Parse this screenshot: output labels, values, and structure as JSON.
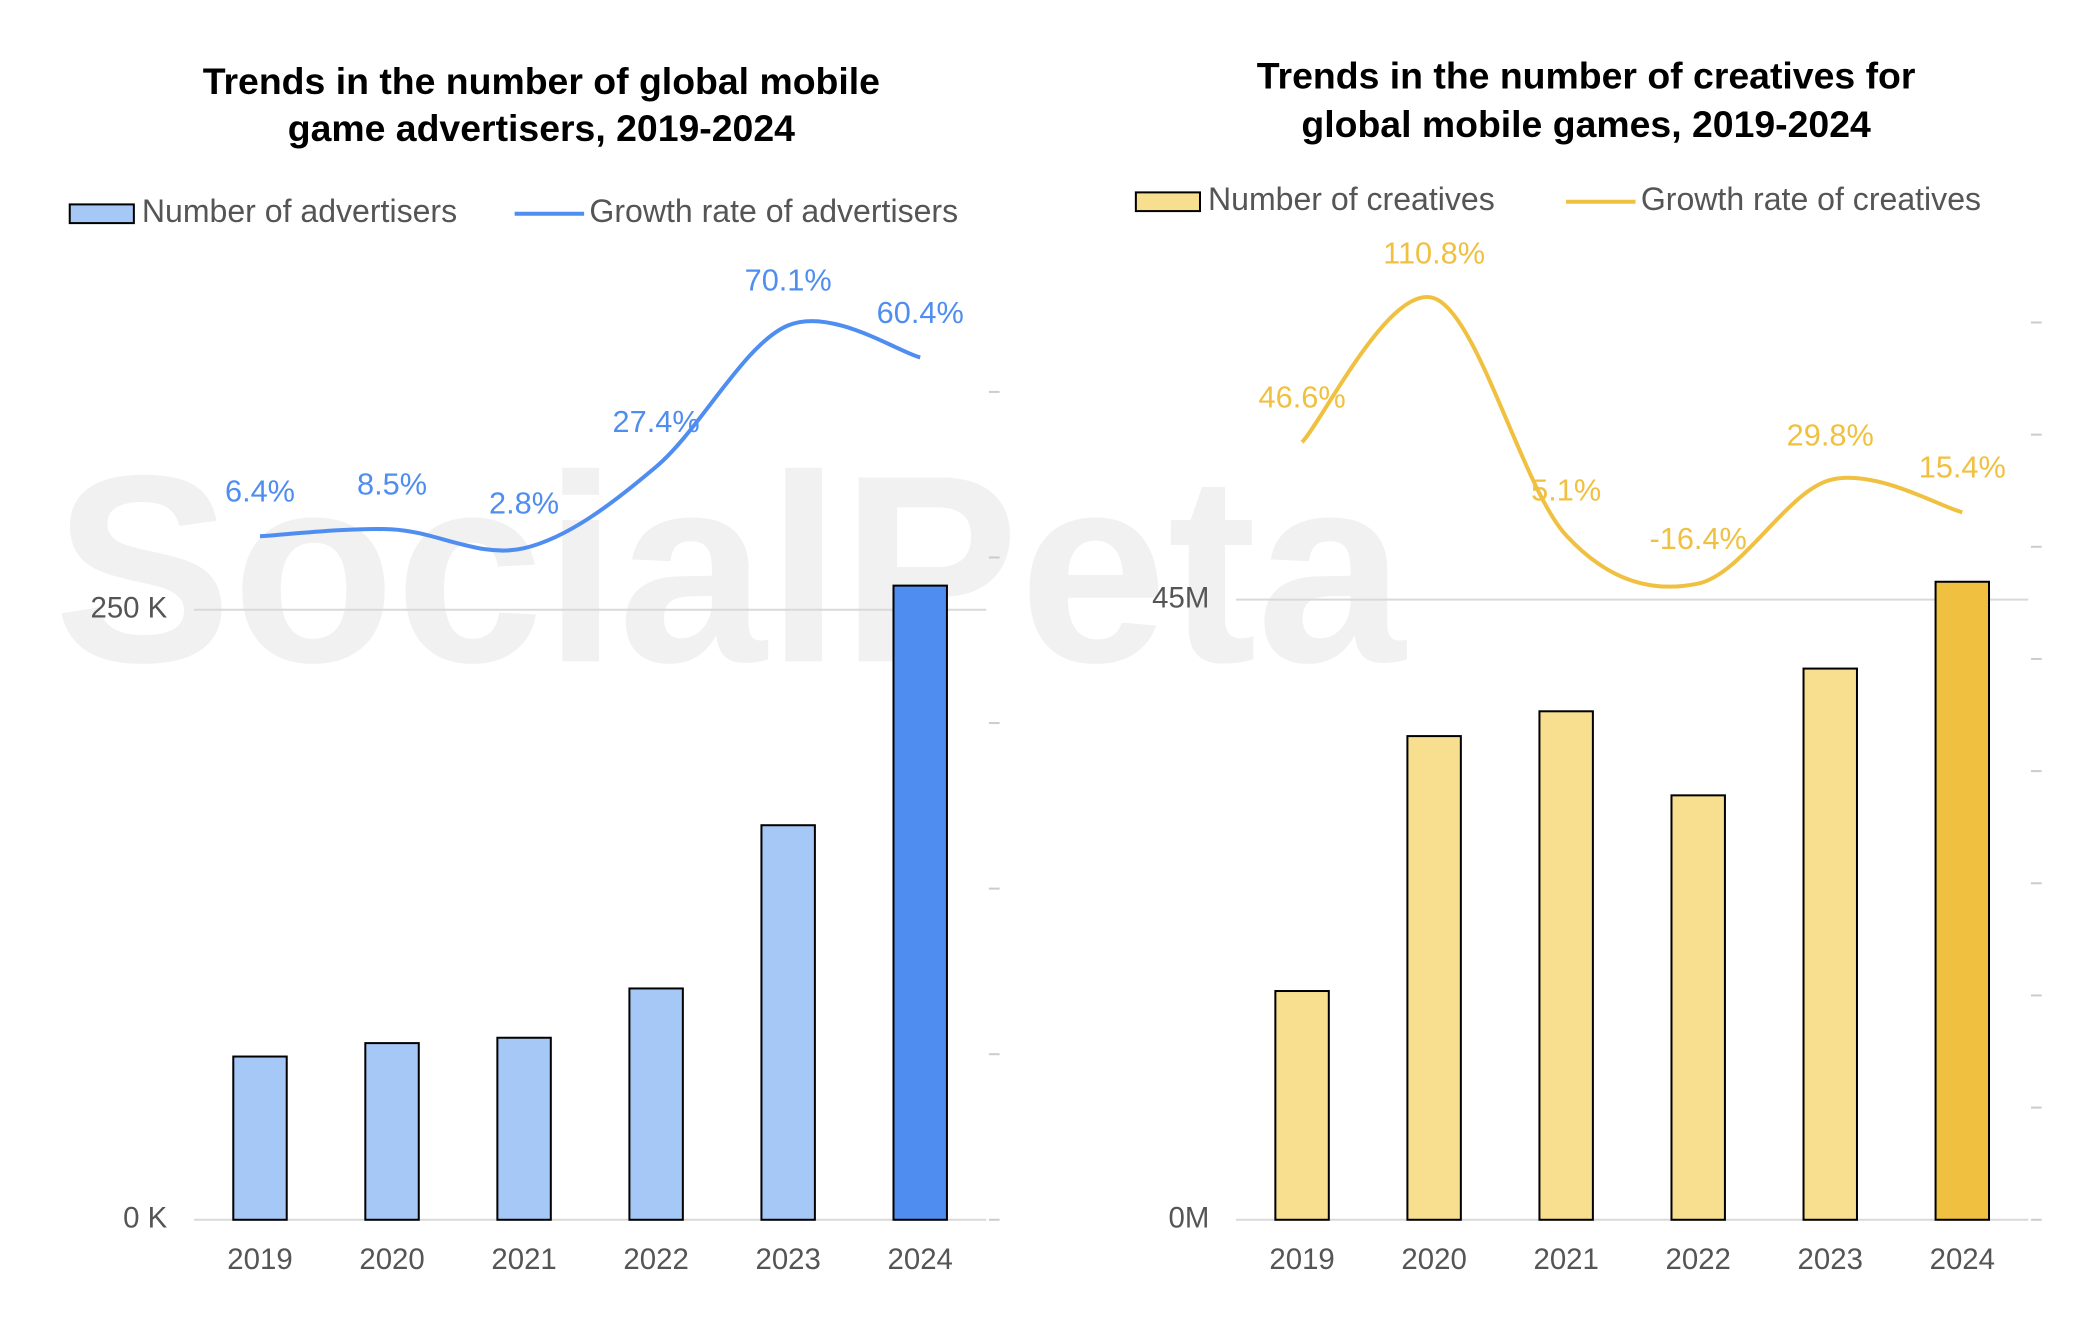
{
  "watermark": "SocialPeta",
  "chart_data": [
    {
      "type": "combo",
      "title": [
        "Trends in the number of global mobile",
        "game advertisers, 2019-2024"
      ],
      "categories": [
        "2019",
        "2020",
        "2021",
        "2022",
        "2023",
        "2024"
      ],
      "series": [
        {
          "name": "Number of advertisers",
          "type": "bar",
          "color": "#a6c8f7",
          "colors": [
            "#a6c8f7",
            "#a6c8f7",
            "#a6c8f7",
            "#a6c8f7",
            "#a6c8f7",
            "#4f8ef0"
          ],
          "values": [
            66900,
            72400,
            74600,
            94800,
            161700,
            259900
          ]
        },
        {
          "name": "Growth rate of advertisers",
          "type": "line",
          "axis": "y2",
          "color": "#4f8ef0",
          "values": [
            6.4,
            8.5,
            2.8,
            27.4,
            70.1,
            60.4
          ],
          "value_labels": [
            "6.4%",
            "8.5%",
            "2.8%",
            "27.4%",
            "70.1%",
            "60.4%"
          ]
        }
      ],
      "ylim": [
        0,
        380000
      ],
      "yticks": [
        {
          "value": 0,
          "label": "0 K"
        },
        {
          "value": 250000,
          "label": "250 K"
        }
      ],
      "y2lim": [
        -200,
        80
      ],
      "y2ticks": [
        -200,
        -150,
        -100,
        -50,
        0,
        50
      ],
      "grid": true
    },
    {
      "type": "combo",
      "title": [
        "Trends in the number of creatives for",
        "global mobile games, 2019-2024"
      ],
      "categories": [
        "2019",
        "2020",
        "2021",
        "2022",
        "2023",
        "2024"
      ],
      "series": [
        {
          "name": "Number of creatives",
          "type": "bar",
          "color": "#f7df8f",
          "colors": [
            "#f7df8f",
            "#f7df8f",
            "#f7df8f",
            "#f7df8f",
            "#f7df8f",
            "#f0c040"
          ],
          "values": [
            16600000,
            35100000,
            36900000,
            30800000,
            40000000,
            46300000
          ]
        },
        {
          "name": "Growth rate of creatives",
          "type": "line",
          "axis": "y2",
          "color": "#f0c040",
          "values": [
            46.6,
            110.8,
            5.1,
            -16.4,
            29.8,
            15.4
          ],
          "value_labels": [
            "46.6%",
            "110.8%",
            "5.1%",
            "-16.4%",
            "29.8%",
            "15.4%"
          ]
        }
      ],
      "ylim": [
        0,
        70000000
      ],
      "yticks": [
        {
          "value": 0,
          "label": "0M"
        },
        {
          "value": 45000000,
          "label": "45M"
        }
      ],
      "y2lim": [
        -300,
        130
      ],
      "y2ticks": [
        -300,
        -250,
        -200,
        -150,
        -100,
        -50,
        0,
        50,
        100
      ],
      "grid": true
    }
  ]
}
